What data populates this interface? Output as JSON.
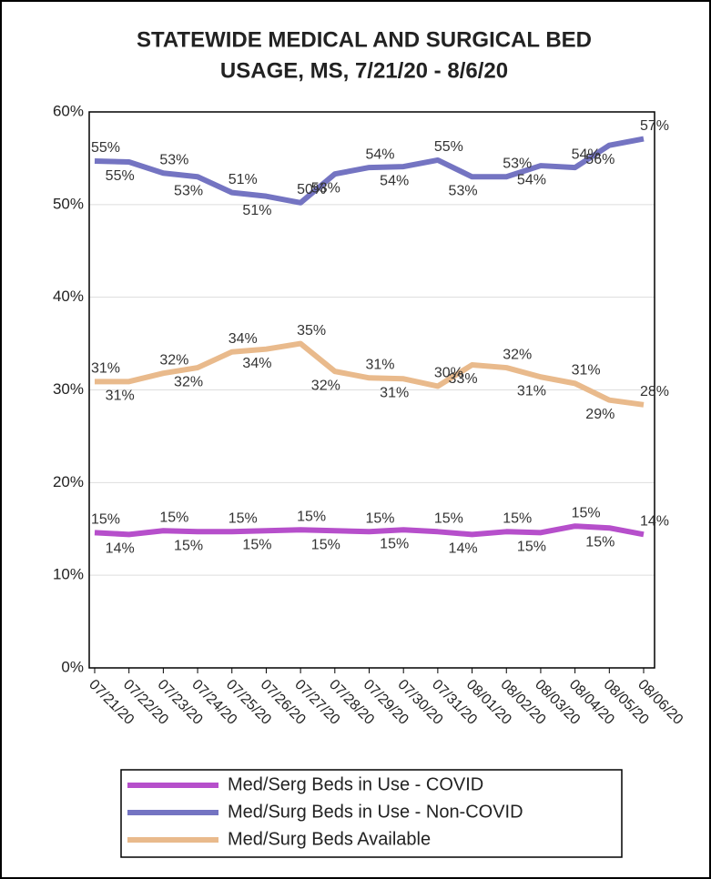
{
  "chart_data": {
    "type": "line",
    "title": "STATEWIDE MEDICAL AND SURGICAL BED",
    "subtitle": "USAGE, MS, 7/21/20 - 8/6/20",
    "categories": [
      "07/21/20",
      "07/22/20",
      "07/23/20",
      "07/24/20",
      "07/25/20",
      "07/26/20",
      "07/27/20",
      "07/28/20",
      "07/29/20",
      "07/30/20",
      "07/31/20",
      "08/01/20",
      "08/02/20",
      "08/03/20",
      "08/04/20",
      "08/05/20",
      "08/06/20"
    ],
    "series": [
      {
        "name": "Med/Serg Beds in Use - COVID",
        "color": "#b64fcb",
        "values": [
          14.6,
          14.4,
          14.8,
          14.7,
          14.7,
          14.8,
          14.9,
          14.8,
          14.7,
          14.9,
          14.7,
          14.4,
          14.7,
          14.6,
          15.3,
          15.1,
          14.4
        ],
        "value_labels": [
          "15%",
          "14%",
          "15%",
          "15%",
          "15%",
          "15%",
          "15%",
          "15%",
          "15%",
          "15%",
          "15%",
          "14%",
          "15%",
          "15%",
          "15%",
          "15%",
          "14%"
        ]
      },
      {
        "name": "Med/Surg Beds in Use - Non-COVID",
        "color": "#7474c2",
        "values": [
          54.7,
          54.6,
          53.4,
          53.0,
          51.3,
          50.9,
          50.2,
          53.3,
          54.0,
          54.1,
          54.8,
          53.0,
          53.0,
          54.2,
          54.0,
          56.4,
          57.1
        ],
        "value_labels": [
          "55%",
          "55%",
          "53%",
          "53%",
          "51%",
          "51%",
          "50%",
          "53%",
          "54%",
          "54%",
          "55%",
          "53%",
          "53%",
          "54%",
          "54%",
          "56%",
          "57%"
        ]
      },
      {
        "name": "Med/Surg Beds Available",
        "color": "#e9ba8c",
        "values": [
          30.9,
          30.9,
          31.8,
          32.4,
          34.1,
          34.4,
          35.0,
          32.0,
          31.3,
          31.2,
          30.4,
          32.7,
          32.4,
          31.4,
          30.7,
          28.9,
          28.4
        ],
        "value_labels": [
          "31%",
          "31%",
          "32%",
          "32%",
          "34%",
          "34%",
          "35%",
          "32%",
          "31%",
          "31%",
          "30%",
          "33%",
          "32%",
          "31%",
          "31%",
          "29%",
          "28%"
        ]
      }
    ],
    "ylim": [
      0,
      60
    ],
    "yticks": [
      {
        "value": 0,
        "label": "0%"
      },
      {
        "value": 10,
        "label": "10%"
      },
      {
        "value": 20,
        "label": "20%"
      },
      {
        "value": 30,
        "label": "30%"
      },
      {
        "value": 40,
        "label": "40%"
      },
      {
        "value": 50,
        "label": "50%"
      },
      {
        "value": 60,
        "label": "60%"
      }
    ],
    "grid": true
  }
}
